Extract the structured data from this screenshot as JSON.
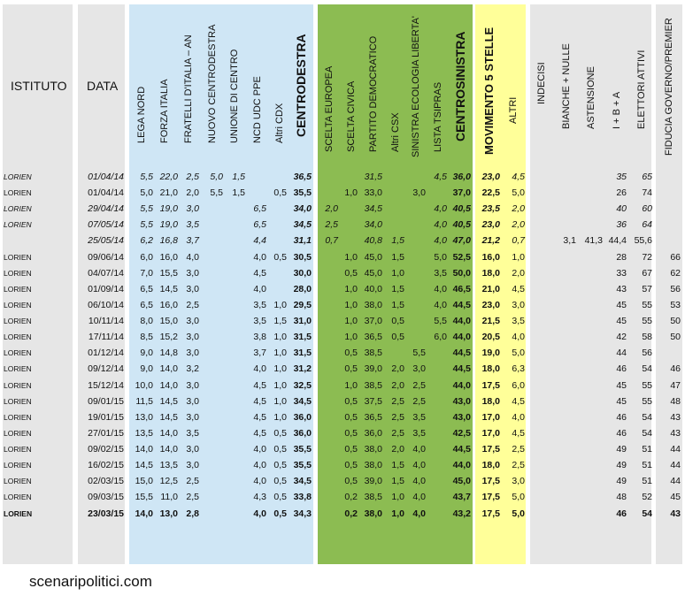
{
  "headers": {
    "istituto": "ISTITUTO",
    "data": "DATA",
    "lega_nord": "LEGA NORD",
    "forza_italia": "FORZA ITALIA",
    "fratelli_italia": "FRATELLI D'ITALIA – AN",
    "nuovo_centrodestra": "NUOVO  CENTRODESTRA",
    "unione_centro": "UNIONE DI CENTRO",
    "ncd_udc_ppe": "NCD UDC PPE",
    "altri_cdx": "Altri CDX",
    "centrodestra": "CENTRODESTRA",
    "scelta_europea": "SCELTA EUROPEA",
    "scelta_civica": "SCELTA CIVICA",
    "partito_democratico": "PARTITO DEMOCRATICO",
    "altri_csx": "Altri CSX",
    "sel": "SINISTRA ECOLOGIA LIBERTA'",
    "lista_tsipras": "LISTA TSIPRAS",
    "centrosinistra": "CENTROSINISTRA",
    "m5s": "MOVIMENTO 5 STELLE",
    "altri": "ALTRI",
    "indecisi": "INDECISI",
    "bianche_nulle": "BIANCHE + NULLE",
    "astensione": "ASTENSIONE",
    "ibna": "I + B + A",
    "elettori_attivi": "ELETTORI ATTIVI",
    "fiducia": "FIDUCIA GOVERNO/PREMIER"
  },
  "rows": [
    {
      "style": "italic",
      "istituto": "LORIEN",
      "data": "01/04/14",
      "ln": "5,5",
      "fi": "22,0",
      "fdi": "2,5",
      "ncd": "5,0",
      "udc": "1,5",
      "ncdudc": "",
      "acdx": "",
      "cdx": "36,5",
      "se": "",
      "sc": "",
      "pd": "31,5",
      "acsx": "",
      "sel": "",
      "ts": "4,5",
      "csx": "36,0",
      "m5s": "23,0",
      "altri": "4,5",
      "ind": "",
      "bn": "",
      "ast": "",
      "iba": "35",
      "ea": "65",
      "fid": ""
    },
    {
      "style": "normal",
      "istituto": "LORIEN",
      "data": "01/04/14",
      "ln": "5,0",
      "fi": "21,0",
      "fdi": "2,0",
      "ncd": "5,5",
      "udc": "1,5",
      "ncdudc": "",
      "acdx": "0,5",
      "cdx": "35,5",
      "se": "",
      "sc": "1,0",
      "pd": "33,0",
      "acsx": "",
      "sel": "3,0",
      "ts": "",
      "csx": "37,0",
      "m5s": "22,5",
      "altri": "5,0",
      "ind": "",
      "bn": "",
      "ast": "",
      "iba": "26",
      "ea": "74",
      "fid": ""
    },
    {
      "style": "italic",
      "istituto": "LORIEN",
      "data": "29/04/14",
      "ln": "5,5",
      "fi": "19,0",
      "fdi": "3,0",
      "ncd": "",
      "udc": "",
      "ncdudc": "6,5",
      "acdx": "",
      "cdx": "34,0",
      "se": "2,0",
      "sc": "",
      "pd": "34,5",
      "acsx": "",
      "sel": "",
      "ts": "4,0",
      "csx": "40,5",
      "m5s": "23,5",
      "altri": "2,0",
      "ind": "",
      "bn": "",
      "ast": "",
      "iba": "40",
      "ea": "60",
      "fid": ""
    },
    {
      "style": "italic",
      "istituto": "LORIEN",
      "data": "07/05/14",
      "ln": "5,5",
      "fi": "19,0",
      "fdi": "3,5",
      "ncd": "",
      "udc": "",
      "ncdudc": "6,5",
      "acdx": "",
      "cdx": "34,5",
      "se": "2,5",
      "sc": "",
      "pd": "34,0",
      "acsx": "",
      "sel": "",
      "ts": "4,0",
      "csx": "40,5",
      "m5s": "23,0",
      "altri": "2,0",
      "ind": "",
      "bn": "",
      "ast": "",
      "iba": "36",
      "ea": "64",
      "fid": ""
    },
    {
      "style": "italic",
      "istituto": "",
      "data": "25/05/14",
      "ln": "6,2",
      "fi": "16,8",
      "fdi": "3,7",
      "ncd": "",
      "udc": "",
      "ncdudc": "4,4",
      "acdx": "",
      "cdx": "31,1",
      "se": "0,7",
      "sc": "",
      "pd": "40,8",
      "acsx": "1,5",
      "sel": "",
      "ts": "4,0",
      "csx": "47,0",
      "m5s": "21,2",
      "altri": "0,7",
      "ind": "",
      "bn": "3,1",
      "ast": "41,3",
      "iba": "44,4",
      "ea": "55,6",
      "fid": "",
      "ibaNormal": true
    },
    {
      "style": "normal",
      "istituto": "LORIEN",
      "data": "09/06/14",
      "ln": "6,0",
      "fi": "16,0",
      "fdi": "4,0",
      "ncd": "",
      "udc": "",
      "ncdudc": "4,0",
      "acdx": "0,5",
      "cdx": "30,5",
      "se": "",
      "sc": "1,0",
      "pd": "45,0",
      "acsx": "1,5",
      "sel": "",
      "ts": "5,0",
      "csx": "52,5",
      "m5s": "16,0",
      "altri": "1,0",
      "ind": "",
      "bn": "",
      "ast": "",
      "iba": "28",
      "ea": "72",
      "fid": "66"
    },
    {
      "style": "normal",
      "istituto": "LORIEN",
      "data": "04/07/14",
      "ln": "7,0",
      "fi": "15,5",
      "fdi": "3,0",
      "ncd": "",
      "udc": "",
      "ncdudc": "4,5",
      "acdx": "",
      "cdx": "30,0",
      "se": "",
      "sc": "0,5",
      "pd": "45,0",
      "acsx": "1,0",
      "sel": "",
      "ts": "3,5",
      "csx": "50,0",
      "m5s": "18,0",
      "altri": "2,0",
      "ind": "",
      "bn": "",
      "ast": "",
      "iba": "33",
      "ea": "67",
      "fid": "62"
    },
    {
      "style": "normal",
      "istituto": "LORIEN",
      "data": "01/09/14",
      "ln": "6,5",
      "fi": "14,5",
      "fdi": "3,0",
      "ncd": "",
      "udc": "",
      "ncdudc": "4,0",
      "acdx": "",
      "cdx": "28,0",
      "se": "",
      "sc": "1,0",
      "pd": "40,0",
      "acsx": "1,5",
      "sel": "",
      "ts": "4,0",
      "csx": "46,5",
      "m5s": "21,0",
      "altri": "4,5",
      "ind": "",
      "bn": "",
      "ast": "",
      "iba": "43",
      "ea": "57",
      "fid": "56"
    },
    {
      "style": "normal",
      "istituto": "LORIEN",
      "data": "06/10/14",
      "ln": "6,5",
      "fi": "16,0",
      "fdi": "2,5",
      "ncd": "",
      "udc": "",
      "ncdudc": "3,5",
      "acdx": "1,0",
      "cdx": "29,5",
      "se": "",
      "sc": "1,0",
      "pd": "38,0",
      "acsx": "1,5",
      "sel": "",
      "ts": "4,0",
      "csx": "44,5",
      "m5s": "23,0",
      "altri": "3,0",
      "ind": "",
      "bn": "",
      "ast": "",
      "iba": "45",
      "ea": "55",
      "fid": "53"
    },
    {
      "style": "normal",
      "istituto": "LORIEN",
      "data": "10/11/14",
      "ln": "8,0",
      "fi": "15,0",
      "fdi": "3,0",
      "ncd": "",
      "udc": "",
      "ncdudc": "3,5",
      "acdx": "1,5",
      "cdx": "31,0",
      "se": "",
      "sc": "1,0",
      "pd": "37,0",
      "acsx": "0,5",
      "sel": "",
      "ts": "5,5",
      "csx": "44,0",
      "m5s": "21,5",
      "altri": "3,5",
      "ind": "",
      "bn": "",
      "ast": "",
      "iba": "45",
      "ea": "55",
      "fid": "50"
    },
    {
      "style": "normal",
      "istituto": "LORIEN",
      "data": "17/11/14",
      "ln": "8,5",
      "fi": "15,2",
      "fdi": "3,0",
      "ncd": "",
      "udc": "",
      "ncdudc": "3,8",
      "acdx": "1,0",
      "cdx": "31,5",
      "se": "",
      "sc": "1,0",
      "pd": "36,5",
      "acsx": "0,5",
      "sel": "",
      "ts": "6,0",
      "csx": "44,0",
      "m5s": "20,5",
      "altri": "4,0",
      "ind": "",
      "bn": "",
      "ast": "",
      "iba": "42",
      "ea": "58",
      "fid": "50"
    },
    {
      "style": "normal",
      "istituto": "LORIEN",
      "data": "01/12/14",
      "ln": "9,0",
      "fi": "14,8",
      "fdi": "3,0",
      "ncd": "",
      "udc": "",
      "ncdudc": "3,7",
      "acdx": "1,0",
      "cdx": "31,5",
      "se": "",
      "sc": "0,5",
      "pd": "38,5",
      "acsx": "",
      "sel": "5,5",
      "ts": "",
      "csx": "44,5",
      "m5s": "19,0",
      "altri": "5,0",
      "ind": "",
      "bn": "",
      "ast": "",
      "iba": "44",
      "ea": "56",
      "fid": ""
    },
    {
      "style": "normal",
      "istituto": "LORIEN",
      "data": "09/12/14",
      "ln": "9,0",
      "fi": "14,0",
      "fdi": "3,2",
      "ncd": "",
      "udc": "",
      "ncdudc": "4,0",
      "acdx": "1,0",
      "cdx": "31,2",
      "se": "",
      "sc": "0,5",
      "pd": "39,0",
      "acsx": "2,0",
      "sel": "3,0",
      "ts": "",
      "csx": "44,5",
      "m5s": "18,0",
      "altri": "6,3",
      "ind": "",
      "bn": "",
      "ast": "",
      "iba": "46",
      "ea": "54",
      "fid": "46"
    },
    {
      "style": "normal",
      "istituto": "LORIEN",
      "data": "15/12/14",
      "ln": "10,0",
      "fi": "14,0",
      "fdi": "3,0",
      "ncd": "",
      "udc": "",
      "ncdudc": "4,5",
      "acdx": "1,0",
      "cdx": "32,5",
      "se": "",
      "sc": "1,0",
      "pd": "38,5",
      "acsx": "2,0",
      "sel": "2,5",
      "ts": "",
      "csx": "44,0",
      "m5s": "17,5",
      "altri": "6,0",
      "ind": "",
      "bn": "",
      "ast": "",
      "iba": "45",
      "ea": "55",
      "fid": "47"
    },
    {
      "style": "normal",
      "istituto": "LORIEN",
      "data": "09/01/15",
      "ln": "11,5",
      "fi": "14,5",
      "fdi": "3,0",
      "ncd": "",
      "udc": "",
      "ncdudc": "4,5",
      "acdx": "1,0",
      "cdx": "34,5",
      "se": "",
      "sc": "0,5",
      "pd": "37,5",
      "acsx": "2,5",
      "sel": "2,5",
      "ts": "",
      "csx": "43,0",
      "m5s": "18,0",
      "altri": "4,5",
      "ind": "",
      "bn": "",
      "ast": "",
      "iba": "45",
      "ea": "55",
      "fid": "48"
    },
    {
      "style": "normal",
      "istituto": "LORIEN",
      "data": "19/01/15",
      "ln": "13,0",
      "fi": "14,5",
      "fdi": "3,0",
      "ncd": "",
      "udc": "",
      "ncdudc": "4,5",
      "acdx": "1,0",
      "cdx": "36,0",
      "se": "",
      "sc": "0,5",
      "pd": "36,5",
      "acsx": "2,5",
      "sel": "3,5",
      "ts": "",
      "csx": "43,0",
      "m5s": "17,0",
      "altri": "4,0",
      "ind": "",
      "bn": "",
      "ast": "",
      "iba": "46",
      "ea": "54",
      "fid": "43"
    },
    {
      "style": "normal",
      "istituto": "LORIEN",
      "data": "27/01/15",
      "ln": "13,5",
      "fi": "14,0",
      "fdi": "3,5",
      "ncd": "",
      "udc": "",
      "ncdudc": "4,5",
      "acdx": "0,5",
      "cdx": "36,0",
      "se": "",
      "sc": "0,5",
      "pd": "36,0",
      "acsx": "2,5",
      "sel": "3,5",
      "ts": "",
      "csx": "42,5",
      "m5s": "17,0",
      "altri": "4,5",
      "ind": "",
      "bn": "",
      "ast": "",
      "iba": "46",
      "ea": "54",
      "fid": "43"
    },
    {
      "style": "normal",
      "istituto": "LORIEN",
      "data": "09/02/15",
      "ln": "14,0",
      "fi": "14,0",
      "fdi": "3,0",
      "ncd": "",
      "udc": "",
      "ncdudc": "4,0",
      "acdx": "0,5",
      "cdx": "35,5",
      "se": "",
      "sc": "0,5",
      "pd": "38,0",
      "acsx": "2,0",
      "sel": "4,0",
      "ts": "",
      "csx": "44,5",
      "m5s": "17,5",
      "altri": "2,5",
      "ind": "",
      "bn": "",
      "ast": "",
      "iba": "49",
      "ea": "51",
      "fid": "44"
    },
    {
      "style": "normal",
      "istituto": "LORIEN",
      "data": "16/02/15",
      "ln": "14,5",
      "fi": "13,5",
      "fdi": "3,0",
      "ncd": "",
      "udc": "",
      "ncdudc": "4,0",
      "acdx": "0,5",
      "cdx": "35,5",
      "se": "",
      "sc": "0,5",
      "pd": "38,0",
      "acsx": "1,5",
      "sel": "4,0",
      "ts": "",
      "csx": "44,0",
      "m5s": "18,0",
      "altri": "2,5",
      "ind": "",
      "bn": "",
      "ast": "",
      "iba": "49",
      "ea": "51",
      "fid": "44"
    },
    {
      "style": "normal",
      "istituto": "LORIEN",
      "data": "02/03/15",
      "ln": "15,0",
      "fi": "12,5",
      "fdi": "2,5",
      "ncd": "",
      "udc": "",
      "ncdudc": "4,0",
      "acdx": "0,5",
      "cdx": "34,5",
      "se": "",
      "sc": "0,5",
      "pd": "39,0",
      "acsx": "1,5",
      "sel": "4,0",
      "ts": "",
      "csx": "45,0",
      "m5s": "17,5",
      "altri": "3,0",
      "ind": "",
      "bn": "",
      "ast": "",
      "iba": "49",
      "ea": "51",
      "fid": "44"
    },
    {
      "style": "normal",
      "istituto": "LORIEN",
      "data": "09/03/15",
      "ln": "15,5",
      "fi": "11,0",
      "fdi": "2,5",
      "ncd": "",
      "udc": "",
      "ncdudc": "4,3",
      "acdx": "0,5",
      "cdx": "33,8",
      "se": "",
      "sc": "0,2",
      "pd": "38,5",
      "acsx": "1,0",
      "sel": "4,0",
      "ts": "",
      "csx": "43,7",
      "m5s": "17,5",
      "altri": "5,0",
      "ind": "",
      "bn": "",
      "ast": "",
      "iba": "48",
      "ea": "52",
      "fid": "45"
    },
    {
      "style": "bold",
      "istituto": "LORIEN",
      "data": "23/03/15",
      "ln": "14,0",
      "fi": "13,0",
      "fdi": "2,8",
      "ncd": "",
      "udc": "",
      "ncdudc": "4,0",
      "acdx": "0,5",
      "cdx": "34,3",
      "se": "",
      "sc": "0,2",
      "pd": "38,0",
      "acsx": "1,0",
      "sel": "4,0",
      "ts": "",
      "csx": "43,2",
      "m5s": "17,5",
      "altri": "5,0",
      "ind": "",
      "bn": "",
      "ast": "",
      "iba": "46",
      "ea": "54",
      "fid": "43"
    }
  ],
  "footer": "scenaripolitici.com",
  "colors": {
    "grey": "#e6e6e6",
    "blue": "#cfe6f5",
    "green": "#8cbc52",
    "yellow": "#ffff99"
  }
}
